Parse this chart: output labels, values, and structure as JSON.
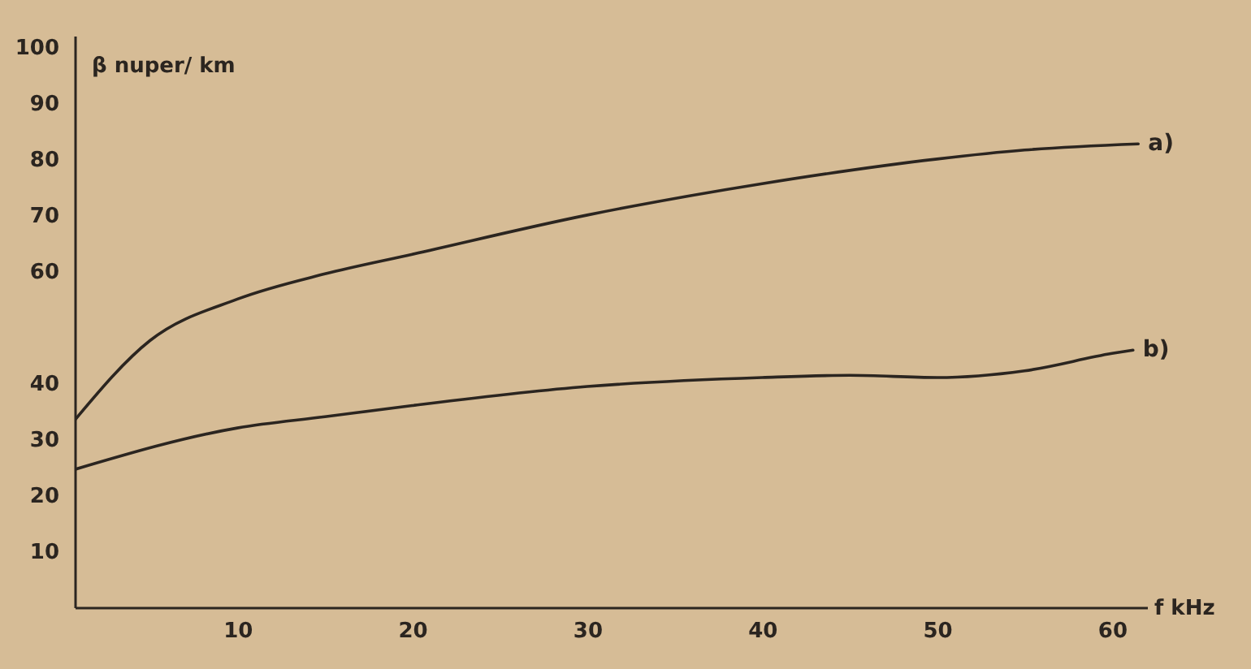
{
  "chart_data": {
    "type": "line",
    "xlabel": "f  kHz",
    "ylabel": "β  nuper/ km",
    "xlim": [
      0.7,
      62
    ],
    "ylim": [
      0,
      102
    ],
    "xticks": [
      10,
      20,
      30,
      40,
      50,
      60
    ],
    "yticks": [
      10,
      20,
      30,
      40,
      60,
      70,
      80,
      90,
      100
    ],
    "grid": false,
    "marker": "none",
    "line_style": "solid",
    "series": [
      {
        "color": "#2b2520",
        "x": [
          0.7,
          5,
          10,
          15,
          20,
          30,
          40,
          50,
          55,
          61.5
        ],
        "values": [
          33.4,
          47.6,
          55,
          59.5,
          63,
          70,
          75.6,
          80,
          81.6,
          82.7
        ]
      },
      {
        "color": "#2b2520",
        "x": [
          0.7,
          10,
          15,
          20,
          30,
          40,
          45,
          50,
          55,
          60,
          61.2
        ],
        "values": [
          24.6,
          32,
          34,
          36,
          39.4,
          41,
          41.4,
          41,
          42.2,
          45.3,
          45.9
        ]
      }
    ],
    "annotations": [
      {
        "text": "a)",
        "x": 61.5,
        "y": 82.7
      },
      {
        "text": "b)",
        "x": 61.2,
        "y": 45.9
      }
    ]
  }
}
